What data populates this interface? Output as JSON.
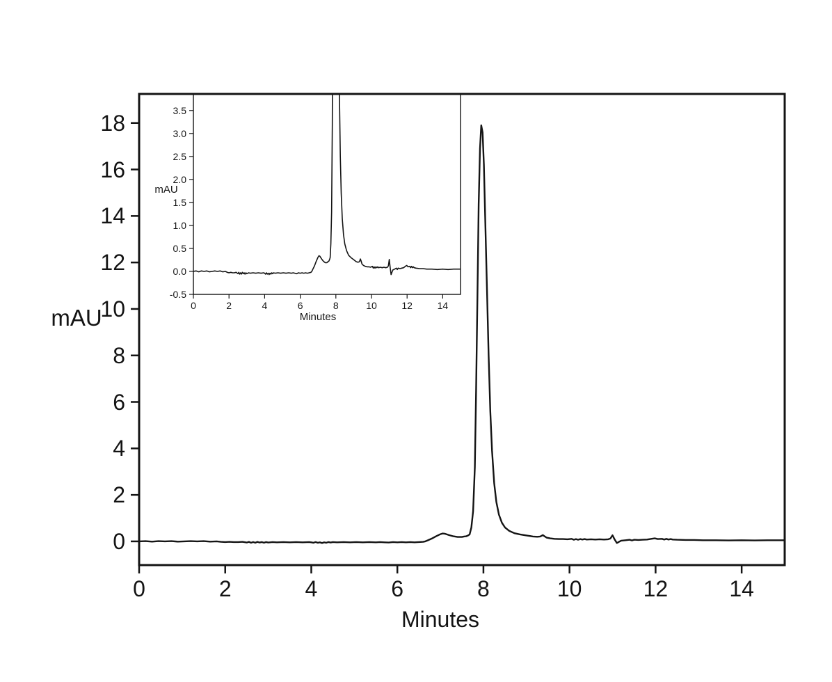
{
  "figure": {
    "background": "#ffffff",
    "foreground": "#141414",
    "description": "HPLC chromatogram: detector signal (mAU) vs time (Minutes) with zoomed inset of the same trace"
  },
  "chart_data": [
    {
      "id": "main",
      "type": "line",
      "title": "",
      "xlabel": "Minutes",
      "ylabel": "mAU",
      "xlim": [
        0,
        15
      ],
      "ylim": [
        -1.02,
        19.25
      ],
      "xticks": [
        0,
        2,
        4,
        6,
        8,
        10,
        12,
        14
      ],
      "xtick_labels": [
        "0",
        "2",
        "4",
        "6",
        "8",
        "10",
        "12",
        "14"
      ],
      "yticks": [
        0,
        2,
        4,
        6,
        8,
        10,
        12,
        14,
        16,
        18
      ],
      "ytick_labels": [
        "0",
        "2",
        "4",
        "6",
        "8",
        "10",
        "12",
        "14",
        "16",
        "18"
      ],
      "grid": false,
      "legend": null,
      "line_color": "#141414",
      "annotations": {
        "main_peak": {
          "x": 7.95,
          "y": 17.9
        },
        "pre_peak_shoulder": {
          "x": 7.05,
          "y": 0.34
        },
        "minor_peak": {
          "x": 9.38,
          "y": 0.27
        },
        "baseline_disturbance": {
          "x": 11.05,
          "y_up": 0.26,
          "y_down": -0.07
        }
      },
      "series": [
        {
          "name": "detector-signal",
          "x": [
            0,
            0.15,
            0.3,
            0.45,
            0.6,
            0.75,
            0.9,
            1.05,
            1.2,
            1.35,
            1.5,
            1.65,
            1.8,
            1.9,
            2,
            2.1,
            2.2,
            2.3,
            2.4,
            2.5,
            2.55,
            2.6,
            2.65,
            2.7,
            2.75,
            2.8,
            2.85,
            2.9,
            2.95,
            3,
            3.1,
            3.2,
            3.35,
            3.5,
            3.65,
            3.8,
            3.95,
            4,
            4.05,
            4.1,
            4.15,
            4.2,
            4.25,
            4.3,
            4.35,
            4.4,
            4.45,
            4.5,
            4.6,
            4.75,
            4.9,
            5.05,
            5.2,
            5.35,
            5.5,
            5.6,
            5.7,
            5.8,
            5.9,
            6,
            6.1,
            6.2,
            6.3,
            6.4,
            6.5,
            6.6,
            6.65,
            6.7,
            6.8,
            6.9,
            7,
            7.05,
            7.1,
            7.2,
            7.3,
            7.4,
            7.5,
            7.55,
            7.6,
            7.65,
            7.68,
            7.72,
            7.76,
            7.8,
            7.83,
            7.86,
            7.89,
            7.92,
            7.95,
            7.98,
            8.01,
            8.04,
            8.08,
            8.12,
            8.16,
            8.2,
            8.25,
            8.3,
            8.36,
            8.43,
            8.5,
            8.6,
            8.72,
            8.85,
            8.95,
            9.05,
            9.15,
            9.25,
            9.32,
            9.38,
            9.42,
            9.47,
            9.55,
            9.65,
            9.75,
            9.85,
            9.95,
            10.05,
            10.1,
            10.15,
            10.2,
            10.25,
            10.3,
            10.35,
            10.4,
            10.5,
            10.6,
            10.7,
            10.8,
            10.9,
            10.95,
            11,
            11.05,
            11.1,
            11.15,
            11.2,
            11.3,
            11.4,
            11.45,
            11.5,
            11.6,
            11.7,
            11.8,
            11.9,
            11.98,
            12.05,
            12.15,
            12.2,
            12.25,
            12.3,
            12.35,
            12.4,
            12.5,
            12.7,
            12.9,
            13.1,
            13.4,
            13.7,
            14,
            14.3,
            14.6,
            15
          ],
          "y": [
            0,
            0.01,
            -0.01,
            0.01,
            0,
            0.01,
            -0.01,
            0,
            0.01,
            0,
            0.01,
            -0.01,
            0,
            -0.02,
            -0.03,
            -0.02,
            -0.03,
            -0.03,
            -0.02,
            -0.05,
            -0.02,
            -0.06,
            -0.03,
            -0.06,
            -0.02,
            -0.05,
            -0.03,
            -0.06,
            -0.03,
            -0.05,
            -0.03,
            -0.04,
            -0.03,
            -0.04,
            -0.03,
            -0.04,
            -0.03,
            -0.04,
            -0.06,
            -0.03,
            -0.06,
            -0.04,
            -0.07,
            -0.04,
            -0.06,
            -0.03,
            -0.05,
            -0.03,
            -0.04,
            -0.03,
            -0.04,
            -0.03,
            -0.04,
            -0.03,
            -0.04,
            -0.03,
            -0.04,
            -0.05,
            -0.03,
            -0.04,
            -0.03,
            -0.04,
            -0.03,
            -0.04,
            -0.03,
            -0.02,
            0,
            0.04,
            0.12,
            0.22,
            0.31,
            0.34,
            0.33,
            0.27,
            0.22,
            0.19,
            0.19,
            0.21,
            0.22,
            0.26,
            0.3,
            0.6,
            1.3,
            3.2,
            6.5,
            10.5,
            14.5,
            16.9,
            17.9,
            17.6,
            16.2,
            14,
            11,
            8,
            5.6,
            3.9,
            2.5,
            1.7,
            1.15,
            0.8,
            0.6,
            0.45,
            0.35,
            0.3,
            0.27,
            0.24,
            0.21,
            0.2,
            0.21,
            0.27,
            0.22,
            0.16,
            0.13,
            0.11,
            0.1,
            0.1,
            0.09,
            0.11,
            0.07,
            0.1,
            0.07,
            0.1,
            0.08,
            0.1,
            0.08,
            0.09,
            0.08,
            0.09,
            0.08,
            0.09,
            0.12,
            0.26,
            0.08,
            -0.07,
            -0.02,
            0.03,
            0.05,
            0.07,
            0.04,
            0.07,
            0.06,
            0.07,
            0.08,
            0.11,
            0.13,
            0.1,
            0.11,
            0.08,
            0.11,
            0.08,
            0.1,
            0.08,
            0.07,
            0.06,
            0.06,
            0.05,
            0.05,
            0.04,
            0.05,
            0.04,
            0.05,
            0.05
          ]
        }
      ]
    },
    {
      "id": "inset",
      "type": "line",
      "title": "",
      "xlabel": "Minutes",
      "ylabel": "mAU",
      "xlim": [
        0,
        15
      ],
      "ylim": [
        -0.5,
        3.86
      ],
      "xticks": [
        0,
        2,
        4,
        6,
        8,
        10,
        12,
        14
      ],
      "xtick_labels": [
        "0",
        "2",
        "4",
        "6",
        "8",
        "10",
        "12",
        "14"
      ],
      "yticks": [
        -0.5,
        0,
        0.5,
        1,
        1.5,
        2,
        2.5,
        3,
        3.5
      ],
      "ytick_labels": [
        "-0.5",
        "0.0",
        "0.5",
        "1.0",
        "1.5",
        "2.0",
        "2.5",
        "3.0",
        "3.5"
      ],
      "grid": false,
      "legend": null,
      "line_color": "#141414",
      "series_from": "main",
      "note": "Same detector-signal trace as the main chart with a zoomed y-axis; the major peak is clipped at the top of the inset"
    }
  ]
}
